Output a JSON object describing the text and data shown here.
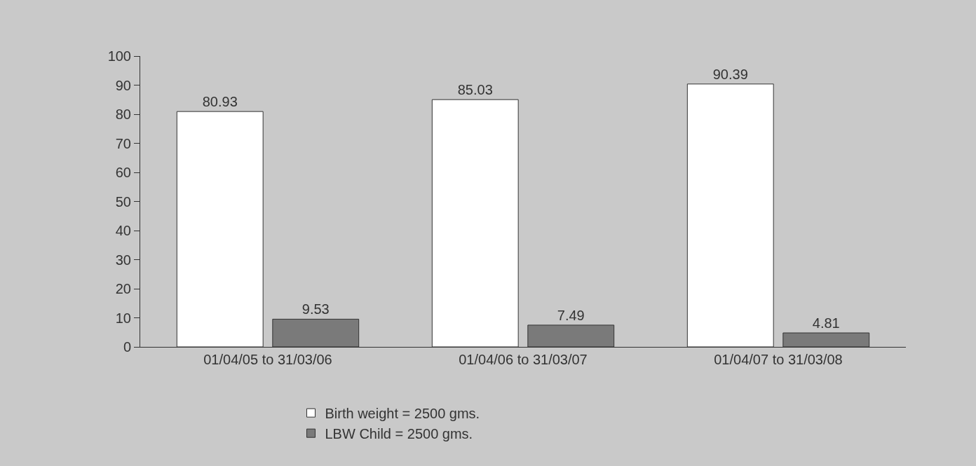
{
  "chart_data": {
    "type": "bar",
    "categories": [
      "01/04/05 to 31/03/06",
      "01/04/06 to 31/03/07",
      "01/04/07 to 31/03/08"
    ],
    "series": [
      {
        "name": "Birth weight = 2500 gms.",
        "color": "#ffffff",
        "values": [
          80.93,
          85.03,
          90.39
        ]
      },
      {
        "name": "LBW Child = 2500 gms.",
        "color": "#7a7a7a",
        "values": [
          9.53,
          7.49,
          4.81
        ]
      }
    ],
    "ylim": [
      0,
      100
    ],
    "yticks": [
      0,
      10,
      20,
      30,
      40,
      50,
      60,
      70,
      80,
      90,
      100
    ],
    "data_labels": true,
    "grid": false,
    "legend": "bottom"
  }
}
